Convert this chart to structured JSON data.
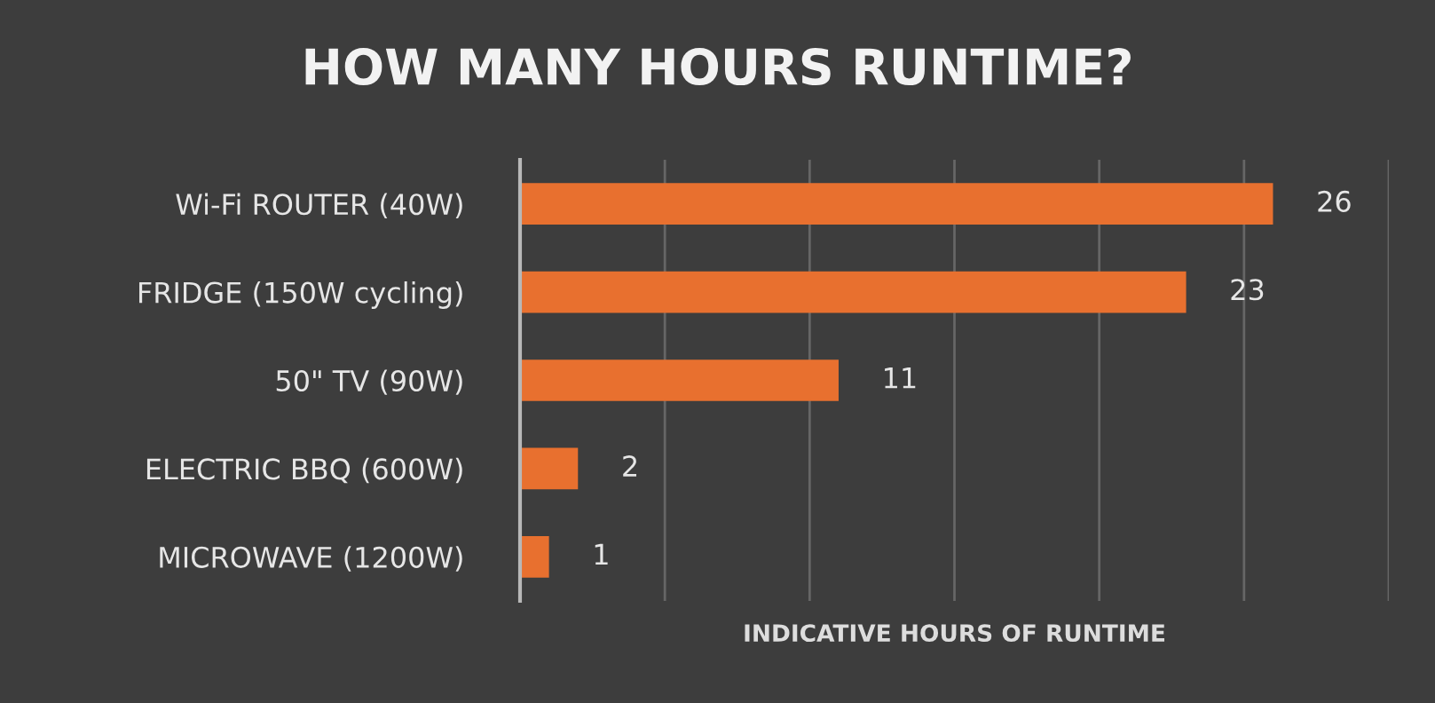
{
  "chart_data": {
    "type": "bar",
    "orientation": "horizontal",
    "title": "HOW MANY HOURS RUNTIME?",
    "xlabel": "INDICATIVE HOURS OF RUNTIME",
    "categories": [
      "Wi-Fi ROUTER (40W)",
      "FRIDGE (150W cycling)",
      "50\" TV (90W)",
      "ELECTRIC BBQ (600W)",
      "MICROWAVE (1200W)"
    ],
    "values": [
      26,
      23,
      11,
      2,
      1
    ],
    "color": "#e8702f",
    "data_labels": true,
    "xlim": [
      0,
      30
    ],
    "xticks": [
      {
        "value": 0,
        "label": null
      },
      {
        "value": 5,
        "label": null
      },
      {
        "value": 10,
        "label": null
      },
      {
        "value": 15,
        "label": null
      },
      {
        "value": 20,
        "label": null
      },
      {
        "value": 25,
        "label": null
      },
      {
        "value": 30,
        "label": null
      }
    ],
    "tick_labels": "y",
    "grid": "x",
    "legend": false
  }
}
